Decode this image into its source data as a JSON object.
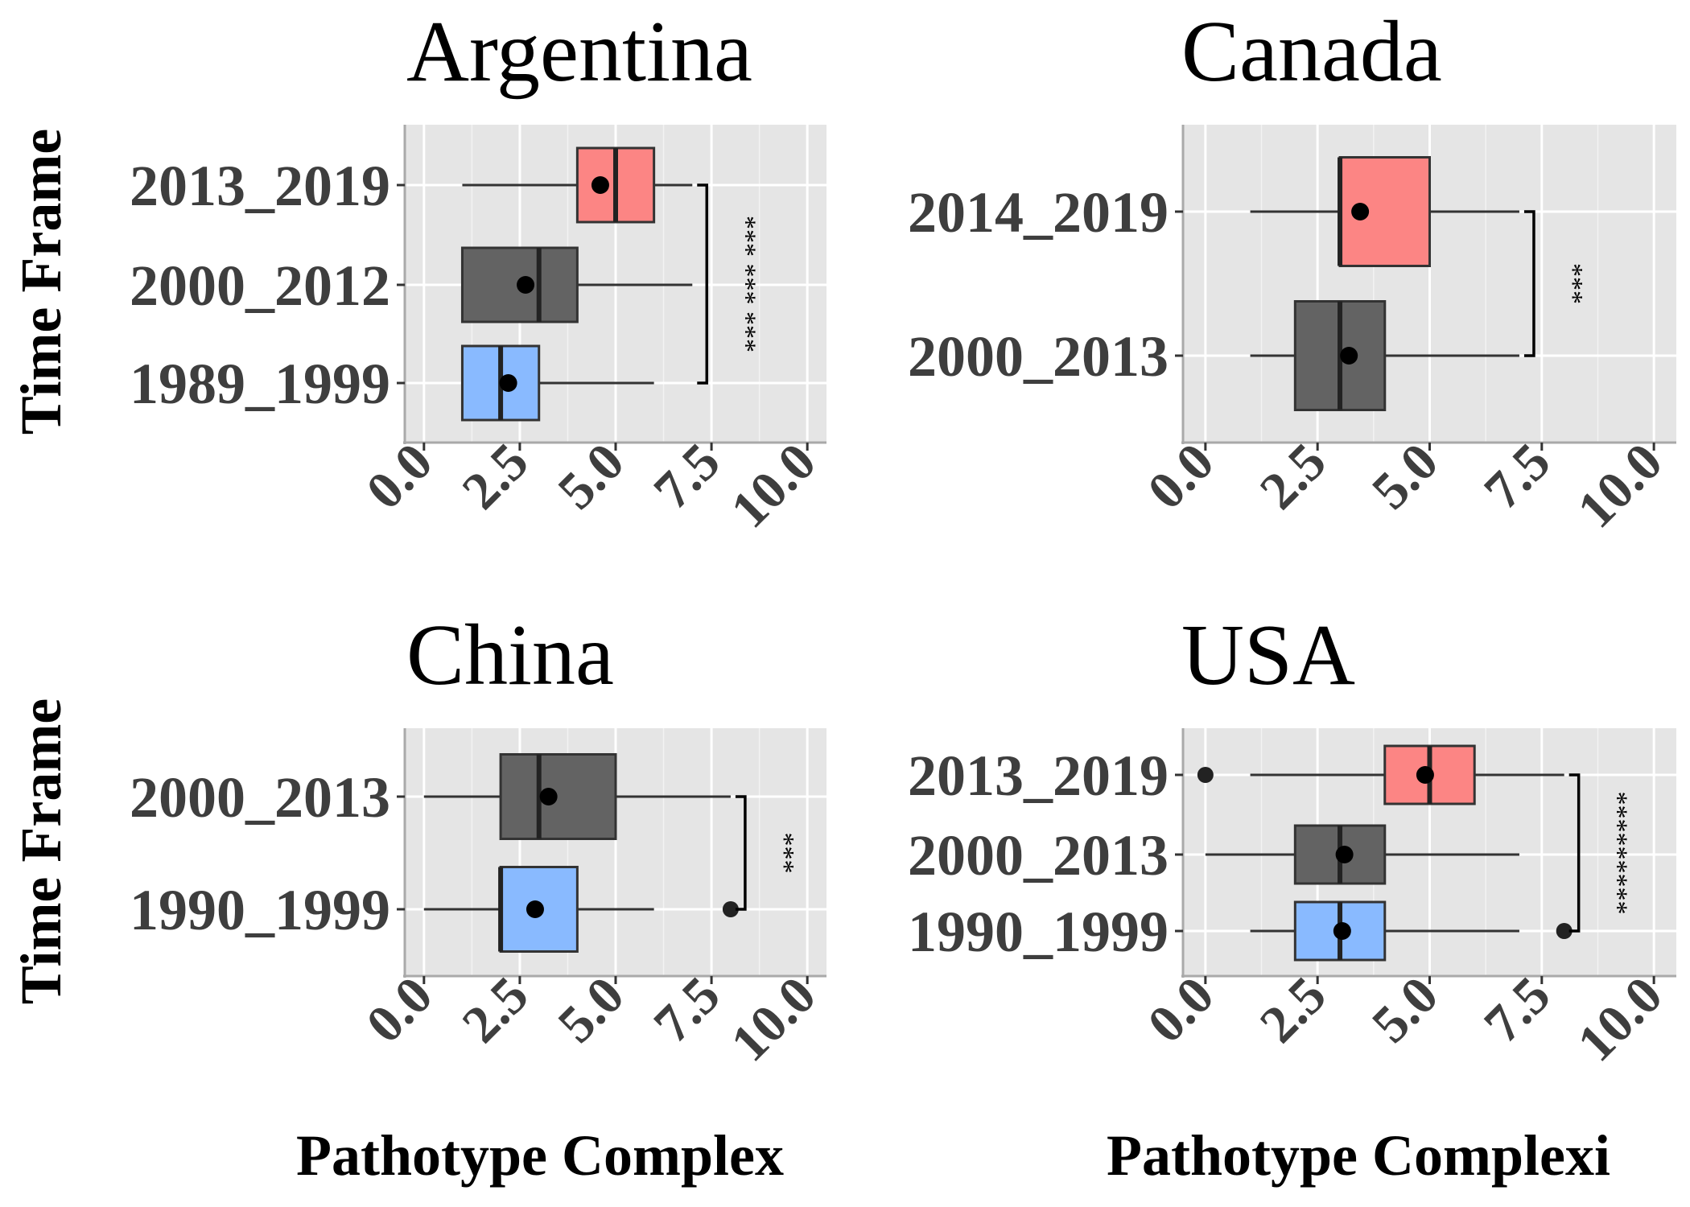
{
  "chart_data": [
    {
      "type": "boxplot",
      "title": "Argentina",
      "ylabel": "Time Frame",
      "xlabel": "Pathotype Complex",
      "xlim": [
        -0.5,
        10.5
      ],
      "xticks": [
        "0.0",
        "2.5",
        "5.0",
        "7.5",
        "10.0"
      ],
      "tick_values": [
        0,
        2.5,
        5,
        7.5,
        10
      ],
      "categories": [
        "2013_2019",
        "2000_2012",
        "1989_1999"
      ],
      "colors": [
        "#fc8584",
        "#636363",
        "#89baff"
      ],
      "boxes": [
        {
          "name": "2013_2019",
          "whisker_low": 1,
          "q1": 4,
          "median": 5,
          "q3": 6,
          "whisker_high": 7,
          "mean": 4.6,
          "outliers": []
        },
        {
          "name": "2000_2012",
          "whisker_low": 1,
          "q1": 1,
          "median": 3,
          "q3": 4,
          "whisker_high": 7,
          "mean": 2.65,
          "outliers": []
        },
        {
          "name": "1989_1999",
          "whisker_low": 1,
          "q1": 1,
          "median": 2,
          "q3": 3,
          "whisker_high": 6,
          "mean": 2.2,
          "outliers": []
        }
      ],
      "significance": [
        {
          "from": "2013_2019",
          "to": "1989_1999",
          "label": "*** *** ***"
        }
      ],
      "grid": true
    },
    {
      "type": "boxplot",
      "title": "Canada",
      "ylabel": "",
      "xlabel": "Pathotype Complexi",
      "xlim": [
        -0.5,
        10.5
      ],
      "xticks": [
        "0.0",
        "2.5",
        "5.0",
        "7.5",
        "10.0"
      ],
      "tick_values": [
        0,
        2.5,
        5,
        7.5,
        10
      ],
      "categories": [
        "2014_2019",
        "2000_2013"
      ],
      "colors": [
        "#fc8584",
        "#636363"
      ],
      "boxes": [
        {
          "name": "2014_2019",
          "whisker_low": 1,
          "q1": 3,
          "median": 3,
          "q3": 5,
          "whisker_high": 7,
          "mean": 3.45,
          "outliers": []
        },
        {
          "name": "2000_2013",
          "whisker_low": 1,
          "q1": 2,
          "median": 3,
          "q3": 4,
          "whisker_high": 7,
          "mean": 3.2,
          "outliers": []
        }
      ],
      "significance": [
        {
          "from": "2014_2019",
          "to": "2000_2013",
          "label": "***"
        }
      ],
      "grid": true
    },
    {
      "type": "boxplot",
      "title": "China",
      "ylabel": "Time Frame",
      "xlabel": "",
      "xlim": [
        -0.5,
        10.5
      ],
      "xticks": [
        "0.0",
        "2.5",
        "5.0",
        "7.5",
        "10.0"
      ],
      "tick_values": [
        0,
        2.5,
        5,
        7.5,
        10
      ],
      "categories": [
        "2000_2013",
        "1990_1999"
      ],
      "colors": [
        "#636363",
        "#89baff"
      ],
      "boxes": [
        {
          "name": "2000_2013",
          "whisker_low": 0,
          "q1": 2,
          "median": 3,
          "q3": 5,
          "whisker_high": 8,
          "mean": 3.25,
          "outliers": []
        },
        {
          "name": "1990_1999",
          "whisker_low": 0,
          "q1": 2,
          "median": 2,
          "q3": 4,
          "whisker_high": 6,
          "mean": 2.9,
          "outliers": [
            8
          ]
        }
      ],
      "significance": [
        {
          "from": "2000_2013",
          "to": "1990_1999",
          "label": "***"
        }
      ],
      "grid": true
    },
    {
      "type": "boxplot",
      "title": "USA",
      "ylabel": "",
      "xlabel": "",
      "xlim": [
        -0.5,
        10.5
      ],
      "xticks": [
        "0.0",
        "2.5",
        "5.0",
        "7.5",
        "10.0"
      ],
      "tick_values": [
        0,
        2.5,
        5,
        7.5,
        10
      ],
      "categories": [
        "2013_2019",
        "2000_2013",
        "1990_1999"
      ],
      "colors": [
        "#fc8584",
        "#636363",
        "#89baff"
      ],
      "boxes": [
        {
          "name": "2013_2019",
          "whisker_low": 1,
          "q1": 4,
          "median": 5,
          "q3": 6,
          "whisker_high": 8,
          "mean": 4.9,
          "outliers": [
            0
          ]
        },
        {
          "name": "2000_2013",
          "whisker_low": 0,
          "q1": 2,
          "median": 3,
          "q3": 4,
          "whisker_high": 7,
          "mean": 3.1,
          "outliers": []
        },
        {
          "name": "1990_1999",
          "whisker_low": 1,
          "q1": 2,
          "median": 3,
          "q3": 4,
          "whisker_high": 7,
          "mean": 3.05,
          "outliers": [
            8
          ]
        }
      ],
      "significance": [
        {
          "from": "2013_2019",
          "to": "1990_1999",
          "label": "*********"
        }
      ],
      "grid": true
    }
  ]
}
